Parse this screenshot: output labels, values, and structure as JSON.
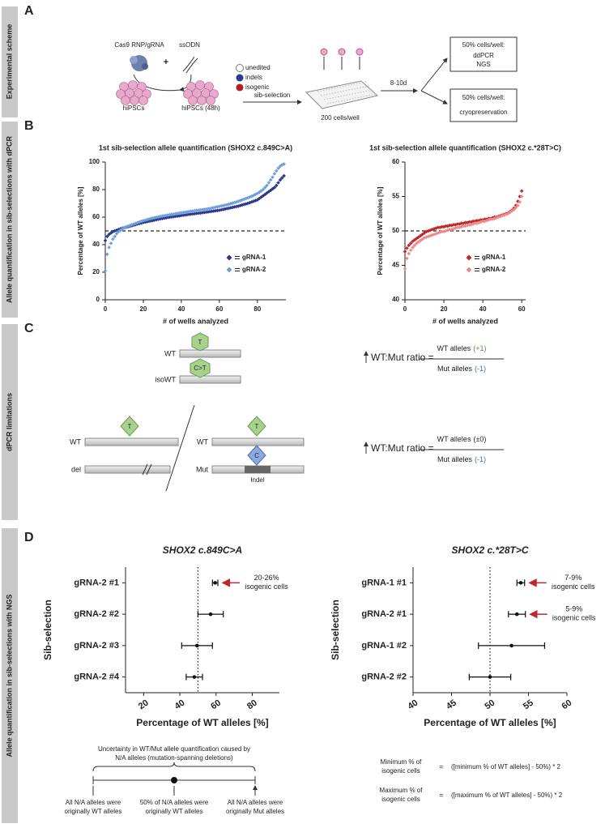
{
  "panel_labels": [
    "A",
    "B",
    "C",
    "D"
  ],
  "side_labels": [
    "Experimental scheme",
    "Allele quantification in sib-selections with dPCR",
    "dPCR limitations",
    "Allele quantification in sib-selections with NGS"
  ],
  "scheme": {
    "reagents": [
      "Cas9 RNP/gRNA",
      "ssODN"
    ],
    "plus": "+",
    "cells": [
      "hiPSCs",
      "hiPSCs (48h)"
    ],
    "legend": [
      "unedited",
      "indels",
      "isogenic"
    ],
    "step": "sib-selection",
    "plate": "200 cells/well",
    "duration": "8-10d",
    "box1": [
      "50% cells/well:",
      "ddPCR",
      "NGS"
    ],
    "box2": [
      "50% cells/well:",
      "cryopreservation"
    ]
  },
  "chart_data": [
    {
      "type": "scatter",
      "title": "1st sib-selection allele quantification (SHOX2 c.849C>A)",
      "x_label": "# of wells analyzed",
      "y_label": "Percentage of WT alleles [%]",
      "x": [
        0,
        1,
        2,
        3,
        4,
        5,
        6,
        7,
        8,
        9,
        10,
        11,
        12,
        13,
        14,
        15,
        16,
        17,
        18,
        19,
        20,
        21,
        22,
        23,
        24,
        25,
        26,
        27,
        28,
        29,
        30,
        31,
        32,
        33,
        34,
        35,
        36,
        37,
        38,
        39,
        40,
        41,
        42,
        43,
        44,
        45,
        46,
        47,
        48,
        49,
        50,
        51,
        52,
        53,
        54,
        55,
        56,
        57,
        58,
        59,
        60,
        61,
        62,
        63,
        64,
        65,
        66,
        67,
        68,
        69,
        70,
        71,
        72,
        73,
        74,
        75,
        76,
        77,
        78,
        79,
        80,
        81,
        82,
        83,
        84,
        85,
        86,
        87,
        88,
        89,
        90,
        91,
        92,
        93,
        94
      ],
      "series": [
        {
          "name": "gRNA-1",
          "color": "#2b3990",
          "values": [
            43,
            46,
            47.5,
            48.5,
            49.5,
            50,
            50.5,
            51,
            51.5,
            52,
            52.3,
            52.7,
            53,
            53.4,
            53.8,
            54.2,
            54.6,
            55,
            55.4,
            55.8,
            56.1,
            56.4,
            56.7,
            57,
            57.3,
            57.6,
            57.9,
            58.2,
            58.5,
            58.8,
            59,
            59.3,
            59.5,
            59.8,
            60,
            60.2,
            60.4,
            60.6,
            60.8,
            61,
            61.2,
            61.4,
            61.6,
            61.8,
            62,
            62.2,
            62.3,
            62.5,
            62.7,
            62.9,
            63,
            63.2,
            63.4,
            63.6,
            63.8,
            64,
            64.2,
            64.4,
            64.6,
            64.8,
            65,
            65.3,
            65.6,
            65.9,
            66.2,
            66.5,
            66.8,
            67.1,
            67.4,
            67.7,
            68,
            68.4,
            68.8,
            69.2,
            69.6,
            70,
            70.5,
            71,
            71.5,
            72,
            72.5,
            73.5,
            74.5,
            75.5,
            76.5,
            77.5,
            78.5,
            79.5,
            80.5,
            81.5,
            83,
            85,
            87,
            88.5,
            90
          ]
        },
        {
          "name": "gRNA-2",
          "color": "#6fa0dc",
          "values": [
            21,
            33,
            38,
            41,
            44,
            46,
            48,
            49.5,
            50.5,
            51.5,
            52.5,
            53,
            53.5,
            54,
            54.5,
            55,
            55.5,
            56,
            56.5,
            57,
            57.4,
            57.8,
            58.2,
            58.6,
            59,
            59.3,
            59.6,
            59.9,
            60.2,
            60.5,
            60.8,
            61,
            61.3,
            61.5,
            61.8,
            62,
            62.2,
            62.5,
            62.7,
            63,
            63.2,
            63.4,
            63.6,
            63.8,
            64,
            64.2,
            64.4,
            64.6,
            64.8,
            65,
            65.2,
            65.4,
            65.6,
            65.8,
            66,
            66.3,
            66.6,
            66.9,
            67.2,
            67.5,
            67.8,
            68.1,
            68.4,
            68.7,
            69,
            69.4,
            69.8,
            70.2,
            70.6,
            71,
            71.5,
            72,
            72.5,
            73,
            73.5,
            74,
            74.6,
            75.2,
            75.8,
            76.5,
            77.2,
            78,
            79,
            80,
            81.5,
            83,
            85,
            87,
            89,
            91.5,
            93.5,
            95.5,
            97,
            98,
            98.5
          ]
        }
      ],
      "xlim": [
        0,
        95
      ],
      "ylim": [
        0,
        100
      ],
      "xticks": [
        0,
        20,
        40,
        60,
        80
      ],
      "yticks": [
        0,
        20,
        40,
        60,
        80,
        100
      ],
      "reference_line": 50,
      "legend": "lower right"
    },
    {
      "type": "scatter",
      "title": "1st sib-selection allele quantification (SHOX2 c.*28T>C)",
      "x_label": "# of wells analyzed",
      "y_label": "Percentage of WT alleles [%]",
      "x": [
        0,
        1,
        2,
        3,
        4,
        5,
        6,
        7,
        8,
        9,
        10,
        11,
        12,
        13,
        14,
        15,
        16,
        17,
        18,
        19,
        20,
        21,
        22,
        23,
        24,
        25,
        26,
        27,
        28,
        29,
        30,
        31,
        32,
        33,
        34,
        35,
        36,
        37,
        38,
        39,
        40,
        41,
        42,
        43,
        44,
        45,
        46,
        47,
        48,
        49,
        50,
        51,
        52,
        53,
        54,
        55,
        56,
        57,
        58,
        59,
        60
      ],
      "series": [
        {
          "name": "gRNA-1",
          "color": "#c0272d",
          "values": [
            47,
            47.5,
            47.9,
            48.2,
            48.5,
            48.7,
            48.9,
            49.1,
            49.3,
            49.5,
            49.7,
            49.9,
            50,
            50.1,
            50.2,
            50.3,
            50.4,
            50.5,
            50.5,
            50.6,
            50.6,
            50.7,
            50.7,
            50.8,
            50.8,
            50.9,
            50.9,
            51,
            51,
            51.1,
            51.1,
            51.2,
            51.2,
            51.3,
            51.3,
            51.4,
            51.4,
            51.5,
            51.5,
            51.6,
            51.6,
            51.7,
            51.7,
            51.8,
            51.8,
            51.9,
            52,
            52,
            52.1,
            52.2,
            52.3,
            52.4,
            52.5,
            52.6,
            52.8,
            53,
            53.3,
            53.7,
            54.3,
            55,
            55.8
          ]
        },
        {
          "name": "gRNA-2",
          "color": "#ec8b8b",
          "values": [
            44.5,
            46,
            46.7,
            47.2,
            47.6,
            47.9,
            48.2,
            48.4,
            48.6,
            48.8,
            49,
            49.1,
            49.2,
            49.3,
            49.4,
            49.5,
            49.6,
            49.7,
            49.8,
            49.9,
            49.9,
            50,
            50.1,
            50.2,
            50.2,
            50.3,
            50.4,
            50.5,
            50.5,
            50.6,
            50.7,
            50.7,
            50.8,
            50.9,
            50.9,
            51,
            51.1,
            51.1,
            51.2,
            51.3,
            51.4,
            51.4,
            51.5,
            51.6,
            51.7,
            51.7,
            51.8,
            51.9,
            52,
            52.1,
            52.2,
            52.3,
            52.4,
            52.5,
            52.7,
            52.9,
            53.1,
            53.4,
            53.7,
            54.2,
            55
          ]
        }
      ],
      "xlim": [
        0,
        62
      ],
      "ylim": [
        40,
        60
      ],
      "xticks": [
        0,
        20,
        40,
        60
      ],
      "yticks": [
        40,
        45,
        50,
        55,
        60
      ],
      "reference_line": 50,
      "legend": "lower right"
    },
    {
      "type": "errorbar",
      "title": "SHOX2 c.849C>A",
      "x_label": "Percentage of WT alleles [%]",
      "y_label": "Sib-selection",
      "categories": [
        "gRNA-2 #1",
        "gRNA-2 #2",
        "gRNA-2 #3",
        "gRNA-2 #4"
      ],
      "values": [
        59.5,
        57,
        49.5,
        48
      ],
      "errors": [
        1.5,
        7,
        8.5,
        4.5
      ],
      "color": "#111111",
      "xlim": [
        10,
        95
      ],
      "xticks": [
        20,
        40,
        60,
        80
      ],
      "reference_line": 50,
      "annotations": [
        [
          "20-26%",
          "isogenic cells"
        ],
        null,
        null,
        null
      ],
      "annotation_color": "#c0272d"
    },
    {
      "type": "errorbar",
      "title": "SHOX2 c.*28T>C",
      "x_label": "Percentage of WT alleles [%]",
      "y_label": "Sib-selection",
      "categories": [
        "gRNA-1 #1",
        "gRNA-2 #1",
        "gRNA-1 #2",
        "gRNA-2 #2"
      ],
      "values": [
        54,
        53.5,
        52.8,
        50
      ],
      "errors": [
        0.5,
        1.1,
        4.3,
        2.7
      ],
      "color": "#111111",
      "xlim": [
        40,
        60
      ],
      "xticks": [
        40,
        45,
        50,
        55,
        60
      ],
      "reference_line": 50,
      "annotations": [
        [
          "7-9%",
          "isogenic cells"
        ],
        [
          "5-9%",
          "isogenic cells"
        ],
        null,
        null
      ],
      "annotation_color": "#c0272d"
    }
  ],
  "limitations": {
    "bar_labels": [
      "WT",
      "isoWT",
      "WT",
      "del",
      "WT",
      "Mut"
    ],
    "base_labels": [
      "T",
      "C>T",
      "T",
      "T",
      "C"
    ],
    "indel": "Indel",
    "ratios": [
      {
        "lhs": "WT:Mut ratio =",
        "numerator": "WT alleles",
        "numerator_change": "(+1)",
        "numerator_color": "#3f9e3a",
        "denominator": "Mut alleles",
        "denominator_change": "(-1)",
        "denominator_color": "#3f6fb6"
      },
      {
        "lhs": "WT:Mut ratio =",
        "numerator": "WT alleles",
        "numerator_change": "(±0)",
        "numerator_color": "#222222",
        "denominator": "Mut alleles",
        "denominator_change": "(-1)",
        "denominator_color": "#3f6fb6"
      }
    ]
  },
  "uncertainty": {
    "caption": [
      "Uncertainty in WT/Mut allele quantification caused by",
      "N/A alleles (mutation-spanning deletions)"
    ],
    "ends": [
      [
        "All N/A alleles were",
        "originally WT alleles"
      ],
      [
        "50% of N/A alleles were",
        "originally WT alleles"
      ],
      [
        "All N/A alleles were",
        "originally Mut alleles"
      ]
    ]
  },
  "formulas": [
    {
      "lhs": [
        "Minimum % of",
        "isogenic cells"
      ],
      "eq": "=",
      "rhs": "([minimum % of WT alleles] - 50%) * 2"
    },
    {
      "lhs": [
        "Maximum % of",
        "isogenic cells"
      ],
      "eq": "=",
      "rhs": "([maximum % of WT alleles] - 50%) * 2"
    }
  ]
}
